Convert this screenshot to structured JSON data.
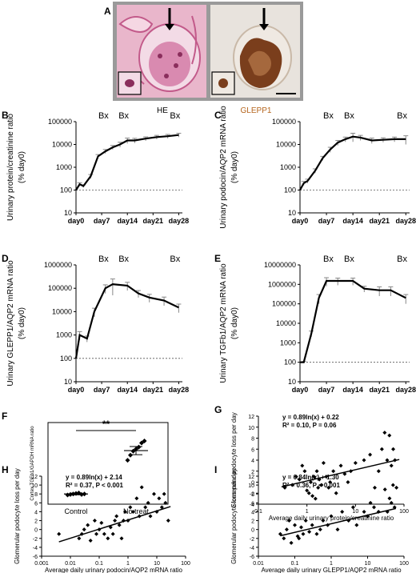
{
  "panelA": {
    "letter": "A",
    "left_label": "HE",
    "right_label": "GLEPP1",
    "colors": {
      "he_bg": "#e9b6cb",
      "he_dark": "#c25a8a",
      "stain_bg": "#e8e3dd",
      "stain_brown": "#7a3e1c",
      "frame": "#9a9a9a",
      "glepp_label": "#b5651d"
    }
  },
  "chart_data": [
    {
      "id": "B",
      "letter": "B",
      "type": "line",
      "ylabel": "Urinary protein/creatinine ratio",
      "ylabel2": "(% day0)",
      "yscale": "log",
      "ylim": [
        10,
        100000
      ],
      "yticks": [
        "10",
        "100",
        "1000",
        "10000",
        "100000"
      ],
      "xticks": [
        "day0",
        "day7",
        "day14",
        "day21",
        "day28"
      ],
      "xlim": [
        0,
        29
      ],
      "x": [
        0,
        1,
        2,
        4,
        6,
        8,
        10,
        12,
        14,
        16,
        19,
        22,
        25,
        28
      ],
      "y": [
        100,
        180,
        150,
        400,
        3000,
        5000,
        7500,
        10000,
        15000,
        15000,
        18000,
        21000,
        23000,
        26000
      ],
      "err": [
        0,
        30,
        20,
        80,
        600,
        1000,
        1500,
        2500,
        4000,
        3500,
        3500,
        4000,
        4500,
        5000
      ],
      "baseline": 100,
      "annotations": [
        {
          "text": "Bx",
          "x": 7.5
        },
        {
          "text": "Bx",
          "x": 13
        },
        {
          "text": "Bx",
          "x": 27
        }
      ]
    },
    {
      "id": "C",
      "letter": "C",
      "type": "line",
      "ylabel": "Urinary podocin/AQP2 mRNA ratio",
      "ylabel2": "(% day0)",
      "yscale": "log",
      "ylim": [
        10,
        100000
      ],
      "yticks": [
        "10",
        "100",
        "1000",
        "10000",
        "100000"
      ],
      "xticks": [
        "day0",
        "day7",
        "day14",
        "day21",
        "day28"
      ],
      "xlim": [
        0,
        29
      ],
      "x": [
        0,
        1,
        2,
        4,
        6,
        8,
        10,
        12,
        14,
        16,
        19,
        22,
        25,
        28
      ],
      "y": [
        100,
        200,
        250,
        700,
        2500,
        6000,
        12000,
        17000,
        22000,
        20000,
        15000,
        16000,
        17000,
        17000
      ],
      "err": [
        0,
        40,
        50,
        150,
        500,
        1500,
        3000,
        4000,
        9000,
        5000,
        4000,
        3500,
        4000,
        7000
      ],
      "baseline": 100,
      "annotations": [
        {
          "text": "Bx",
          "x": 7.5
        },
        {
          "text": "Bx",
          "x": 13
        },
        {
          "text": "Bx",
          "x": 27
        }
      ]
    },
    {
      "id": "D",
      "letter": "D",
      "type": "line",
      "ylabel": "Urinary GLEPP1/AQP2 mRNA ratio",
      "ylabel2": "(% day0)",
      "yscale": "log",
      "ylim": [
        10,
        1000000
      ],
      "yticks": [
        "10",
        "100",
        "1000",
        "10000",
        "100000",
        "1000000"
      ],
      "xticks": [
        "day0",
        "day7",
        "day14",
        "day21",
        "day28"
      ],
      "xlim": [
        0,
        29
      ],
      "x": [
        0,
        1,
        3,
        5,
        8,
        10,
        14,
        17,
        20,
        24,
        28
      ],
      "y": [
        100,
        1000,
        700,
        10000,
        100000,
        150000,
        130000,
        60000,
        40000,
        30000,
        15000
      ],
      "err": [
        0,
        400,
        200,
        4000,
        40000,
        100000,
        50000,
        20000,
        15000,
        12000,
        6000
      ],
      "baseline": 100,
      "annotations": [
        {
          "text": "Bx",
          "x": 7.5
        },
        {
          "text": "Bx",
          "x": 13
        },
        {
          "text": "Bx",
          "x": 27
        }
      ]
    },
    {
      "id": "E",
      "letter": "E",
      "type": "line",
      "ylabel": "Urinary TGFb1/AQP2 mRNA ratio",
      "ylabel2": "(% day0)",
      "yscale": "log",
      "ylim": [
        10,
        10000000
      ],
      "yticks": [
        "10",
        "100",
        "1000",
        "10000",
        "100000",
        "1000000",
        "10000000"
      ],
      "xticks": [
        "day0",
        "day7",
        "day14",
        "day21",
        "day28"
      ],
      "xlim": [
        0,
        29
      ],
      "x": [
        0,
        1,
        3,
        5,
        7,
        10,
        14,
        17,
        21,
        24,
        28
      ],
      "y": [
        100,
        100,
        3000,
        200000,
        1500000,
        1500000,
        1500000,
        600000,
        500000,
        500000,
        200000
      ],
      "err": [
        0,
        10,
        1000,
        100000,
        700000,
        600000,
        600000,
        200000,
        250000,
        250000,
        100000
      ],
      "baseline": 100,
      "annotations": [
        {
          "text": "Bx",
          "x": 7.5
        },
        {
          "text": "Bx",
          "x": 13
        },
        {
          "text": "Bx",
          "x": 27
        }
      ]
    },
    {
      "id": "F",
      "letter": "F",
      "type": "scatter",
      "ylabel": "Cortex TGFb1/GAPDH mRNA ratio",
      "ylim": [
        0,
        800
      ],
      "categories": [
        "Control",
        "No treat"
      ],
      "points": [
        {
          "group": 0,
          "values": [
            90,
            95,
            100,
            105,
            110,
            95,
            100
          ]
        },
        {
          "group": 1,
          "values": [
            430,
            480,
            520,
            540,
            560,
            600,
            620
          ]
        }
      ],
      "means": [
        100,
        525
      ],
      "sem": [
        8,
        40
      ],
      "significance": "**"
    },
    {
      "id": "G",
      "letter": "G",
      "type": "scatter",
      "xscale": "log",
      "xlim": [
        0.1,
        100
      ],
      "xticks": [
        "0.1",
        "1",
        "10",
        "100"
      ],
      "ylim": [
        -4,
        12
      ],
      "yticks": [
        "-4",
        "-2",
        "0",
        "2",
        "4",
        "6",
        "8",
        "10",
        "12"
      ],
      "xlabel": "Average daily urinary protein/creatinine ratio",
      "ylabel": "Glomerular podocyte loss per day",
      "equation": "y = 0.89ln(x) + 0.22",
      "stats": "R² = 0.10, P = 0.06",
      "fit": {
        "slope": 0.89,
        "intercept": 0.22,
        "x_from": 0.3,
        "x_to": 80
      },
      "points": [
        [
          0.35,
          -1
        ],
        [
          0.5,
          -0.5
        ],
        [
          0.6,
          1
        ],
        [
          0.7,
          0.5
        ],
        [
          0.8,
          3
        ],
        [
          0.9,
          2
        ],
        [
          1,
          -1.5
        ],
        [
          1.1,
          -2
        ],
        [
          1.2,
          0
        ],
        [
          1.3,
          -2.5
        ],
        [
          1.4,
          1
        ],
        [
          1.5,
          -3
        ],
        [
          1.6,
          2
        ],
        [
          1.7,
          -1
        ],
        [
          1.8,
          0.5
        ],
        [
          2,
          -0.5
        ],
        [
          2.2,
          3.5
        ],
        [
          2.5,
          1
        ],
        [
          2.8,
          -1
        ],
        [
          3,
          0
        ],
        [
          3.5,
          2
        ],
        [
          4,
          -2
        ],
        [
          5,
          3
        ],
        [
          6,
          1.5
        ],
        [
          7,
          0
        ],
        [
          8,
          2
        ],
        [
          10,
          3.5
        ],
        [
          15,
          4
        ],
        [
          20,
          5
        ],
        [
          25,
          -1
        ],
        [
          30,
          2
        ],
        [
          35,
          6
        ],
        [
          40,
          9
        ],
        [
          45,
          4
        ],
        [
          50,
          8.5
        ],
        [
          55,
          3
        ],
        [
          60,
          6
        ],
        [
          65,
          4
        ],
        [
          70,
          -1
        ]
      ]
    },
    {
      "id": "H",
      "letter": "H",
      "type": "scatter",
      "xscale": "log",
      "xlim": [
        0.001,
        100
      ],
      "xticks": [
        "0.001",
        "0.01",
        "0.1",
        "1",
        "10",
        "100"
      ],
      "ylim": [
        -6,
        12
      ],
      "yticks": [
        "-6",
        "-4",
        "-2",
        "0",
        "2",
        "4",
        "6",
        "8",
        "10",
        "12"
      ],
      "xlabel": "Average daily urinary podocin/AQP2 mRNA ratio",
      "ylabel": "Glomerular podocyte loss per day",
      "equation": "y = 0.89ln(x) + 2.14",
      "stats": "R² = 0.37, P < 0.001",
      "fit": {
        "slope": 0.89,
        "intercept": 2.14,
        "x_from": 0.004,
        "x_to": 30
      },
      "points": [
        [
          0.004,
          -1
        ],
        [
          0.02,
          -2
        ],
        [
          0.025,
          -1
        ],
        [
          0.03,
          0
        ],
        [
          0.04,
          1
        ],
        [
          0.05,
          -2.5
        ],
        [
          0.07,
          2
        ],
        [
          0.08,
          -1
        ],
        [
          0.1,
          0
        ],
        [
          0.12,
          1.5
        ],
        [
          0.15,
          -1
        ],
        [
          0.2,
          -2
        ],
        [
          0.25,
          0.5
        ],
        [
          0.3,
          -1
        ],
        [
          0.35,
          2
        ],
        [
          0.4,
          3
        ],
        [
          0.5,
          1
        ],
        [
          0.6,
          -2
        ],
        [
          0.7,
          2
        ],
        [
          0.8,
          4
        ],
        [
          1,
          2
        ],
        [
          1.2,
          5
        ],
        [
          1.5,
          4
        ],
        [
          2,
          7
        ],
        [
          2.5,
          3
        ],
        [
          3,
          9.5
        ],
        [
          4,
          5
        ],
        [
          5,
          6
        ],
        [
          6,
          3
        ],
        [
          8,
          8
        ],
        [
          10,
          4
        ],
        [
          12,
          7
        ],
        [
          15,
          5
        ],
        [
          18,
          8
        ],
        [
          20,
          6
        ],
        [
          25,
          2
        ]
      ]
    },
    {
      "id": "I",
      "letter": "I",
      "type": "scatter",
      "xscale": "log",
      "xlim": [
        0.01,
        100
      ],
      "xticks": [
        "0.01",
        "0.1",
        "1",
        "10",
        "100"
      ],
      "ylim": [
        -6,
        12
      ],
      "yticks": [
        "-6",
        "-4",
        "-2",
        "0",
        "2",
        "4",
        "6",
        "8",
        "10",
        "12"
      ],
      "xlabel": "Average daily urinary GLEPP1/AQP2 mRNA ratio",
      "ylabel": "Glomerular podocyte loss per day",
      "equation": "y = 0.84ln(x) + 1.30",
      "stats": "R² = 0.36, P < 0.001",
      "fit": {
        "slope": 0.84,
        "intercept": 1.3,
        "x_from": 0.04,
        "x_to": 60
      },
      "points": [
        [
          0.04,
          -1
        ],
        [
          0.05,
          -2
        ],
        [
          0.06,
          0
        ],
        [
          0.07,
          2
        ],
        [
          0.08,
          -3
        ],
        [
          0.1,
          1
        ],
        [
          0.12,
          -1.5
        ],
        [
          0.13,
          -2
        ],
        [
          0.15,
          0.5
        ],
        [
          0.17,
          -1
        ],
        [
          0.2,
          2
        ],
        [
          0.25,
          -0.5
        ],
        [
          0.3,
          1
        ],
        [
          0.4,
          -1
        ],
        [
          0.5,
          0
        ],
        [
          0.6,
          2
        ],
        [
          0.8,
          1
        ],
        [
          1,
          3
        ],
        [
          1.5,
          0
        ],
        [
          2,
          4
        ],
        [
          3,
          2
        ],
        [
          4,
          5
        ],
        [
          5,
          1
        ],
        [
          8,
          4
        ],
        [
          10,
          3
        ],
        [
          12,
          6
        ],
        [
          15,
          5
        ],
        [
          20,
          4
        ],
        [
          30,
          9
        ],
        [
          35,
          4
        ],
        [
          40,
          7
        ],
        [
          45,
          6
        ],
        [
          50,
          10
        ],
        [
          55,
          5
        ]
      ]
    }
  ]
}
